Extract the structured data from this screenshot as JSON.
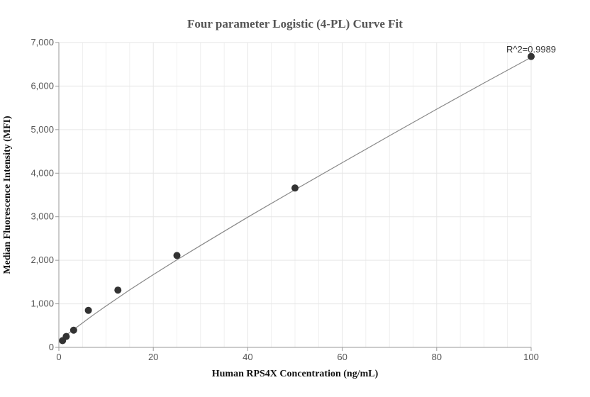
{
  "chart_data": {
    "type": "scatter",
    "title": "Four parameter Logistic (4-PL) Curve Fit",
    "xlabel": "Human RPS4X Concentration (ng/mL)",
    "ylabel": "Median Fluorescence Intensity (MFI)",
    "xlim": [
      0,
      100
    ],
    "ylim": [
      0,
      7000
    ],
    "x_ticks": [
      0,
      20,
      40,
      60,
      80,
      100
    ],
    "x_tick_labels": [
      "0",
      "20",
      "40",
      "60",
      "80",
      "100"
    ],
    "y_ticks": [
      0,
      1000,
      2000,
      3000,
      4000,
      5000,
      6000,
      7000
    ],
    "y_tick_labels": [
      "0",
      "1,000",
      "2,000",
      "3,000",
      "4,000",
      "5,000",
      "6,000",
      "7,000"
    ],
    "grid": true,
    "points": [
      {
        "x": 0.78,
        "y": 155
      },
      {
        "x": 1.56,
        "y": 250
      },
      {
        "x": 3.13,
        "y": 395
      },
      {
        "x": 6.25,
        "y": 850
      },
      {
        "x": 12.5,
        "y": 1315
      },
      {
        "x": 25,
        "y": 2110
      },
      {
        "x": 50,
        "y": 3660
      },
      {
        "x": 100,
        "y": 6680
      }
    ],
    "fit_curve": {
      "x": [
        0.78,
        1.5,
        3,
        5,
        7.5,
        10,
        15,
        20,
        25,
        30,
        40,
        50,
        60,
        70,
        80,
        90,
        100
      ],
      "y": [
        215,
        275,
        400,
        560,
        760,
        950,
        1320,
        1670,
        2010,
        2340,
        2990,
        3620,
        4240,
        4860,
        5470,
        6070,
        6660
      ]
    },
    "annotation": "R^2=0.9989",
    "colors": {
      "point": "#333333",
      "curve": "#888888",
      "grid": "#e6e6e6",
      "axis": "#999999"
    }
  }
}
